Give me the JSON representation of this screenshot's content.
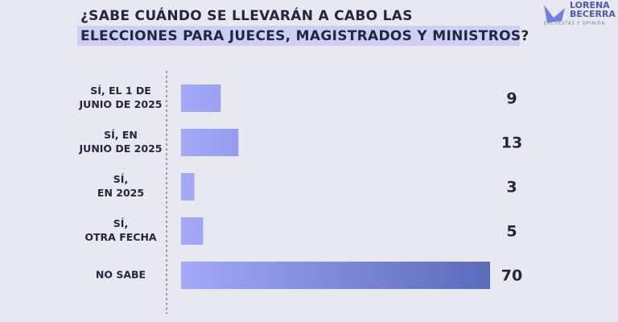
{
  "logo": {
    "name": [
      "LORENA",
      "BECERRA"
    ],
    "tagline": "ENCUESTAS Y OPINIÓN"
  },
  "chart_data": {
    "type": "bar",
    "orientation": "horizontal",
    "title": [
      "¿SABE CUÁNDO SE LLEVARÁN A CABO LAS",
      "ELECCIONES PARA JUECES, MAGISTRADOS Y MINISTROS?"
    ],
    "categories": [
      [
        "SÍ, EL 1 DE",
        "JUNIO DE 2025"
      ],
      [
        "SÍ, EN",
        "JUNIO DE 2025"
      ],
      [
        "SÍ,",
        "EN 2025"
      ],
      [
        "SÍ,",
        "OTRA FECHA"
      ],
      [
        "NO SABE"
      ]
    ],
    "values": [
      9,
      13,
      3,
      5,
      70
    ],
    "colors": [
      "#a4a8f8",
      "#5a6bbb"
    ]
  }
}
